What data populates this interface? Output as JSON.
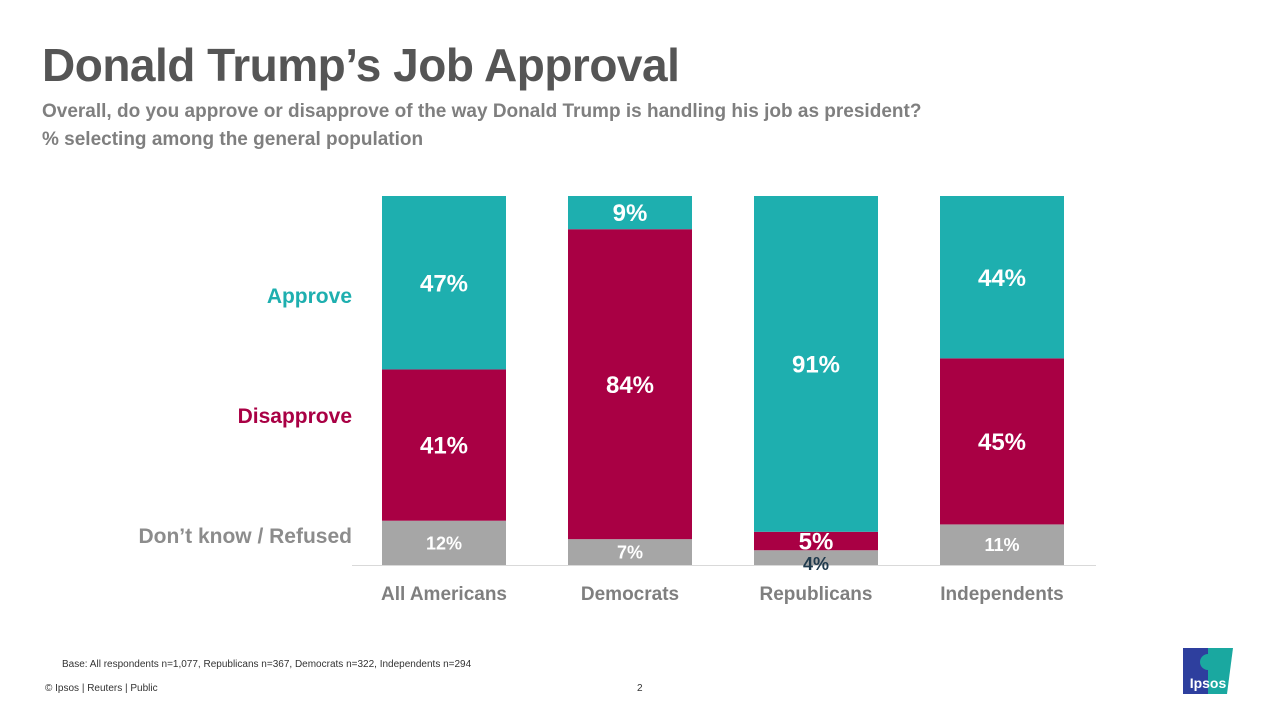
{
  "title": "Donald Trump’s Job Approval",
  "subtitle": "Overall, do you approve or disapprove of the way Donald Trump is handling his job as president?",
  "subtitle2": "% selecting among the general population",
  "footer": {
    "base": "Base: All respondents n=1,077, Republicans n=367, Democrats n=322, Independents n=294",
    "copyright": "© Ipsos | Reuters | Public",
    "page": "2",
    "logo": "Ipsos"
  },
  "chart_data": {
    "type": "stacked-bar",
    "categories": [
      "All Americans",
      "Democrats",
      "Republicans",
      "Independents"
    ],
    "series": [
      {
        "name": "Don’t know / Refused",
        "color": "#A6A6A6",
        "values": [
          12,
          7,
          4,
          11
        ]
      },
      {
        "name": "Disapprove",
        "color": "#A90044",
        "values": [
          41,
          84,
          5,
          45
        ]
      },
      {
        "name": "Approve",
        "color": "#1EAFAF",
        "values": [
          47,
          9,
          91,
          44
        ]
      }
    ],
    "ylim": [
      0,
      100
    ],
    "value_suffix": "%",
    "legend": "left"
  }
}
